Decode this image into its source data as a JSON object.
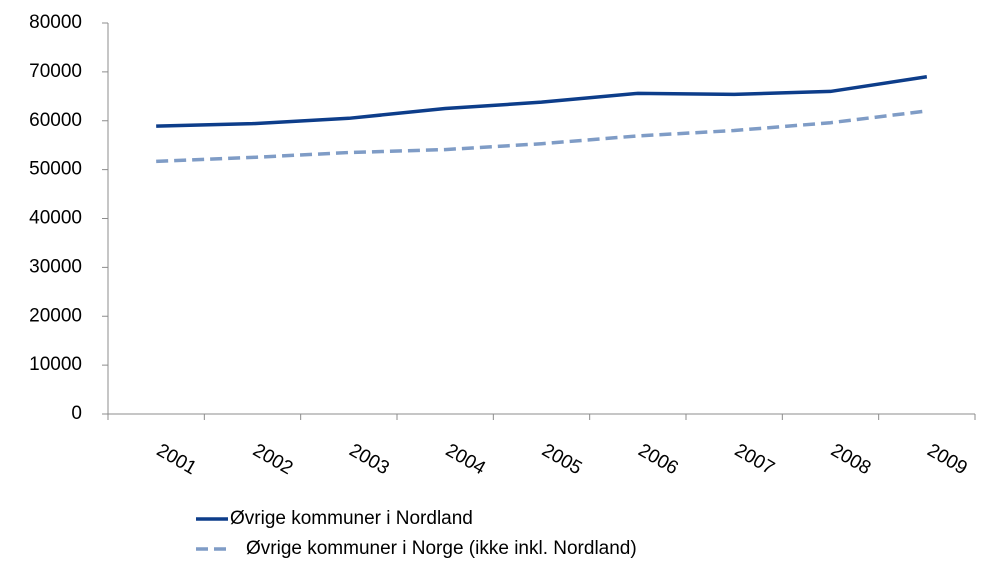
{
  "chart_data": {
    "type": "line",
    "categories": [
      "2001",
      "2002",
      "2003",
      "2004",
      "2005",
      "2006",
      "2007",
      "2008",
      "2009"
    ],
    "series": [
      {
        "name": "Øvrige kommuner i Nordland",
        "color": "#0d3d8a",
        "line_style": "solid",
        "values": [
          58900,
          59400,
          60500,
          62500,
          63800,
          65600,
          65400,
          66000,
          69000
        ]
      },
      {
        "name": "Øvrige kommuner i Norge (ikke inkl. Nordland)",
        "color": "#7f9cc6",
        "line_style": "dashed",
        "values": [
          51700,
          52500,
          53500,
          54100,
          55300,
          56900,
          58000,
          59600,
          62000
        ]
      }
    ],
    "ylim": [
      0,
      80000
    ],
    "yticks": [
      0,
      10000,
      20000,
      30000,
      40000,
      50000,
      60000,
      70000,
      80000
    ],
    "grid": false,
    "legend": "bottom"
  }
}
